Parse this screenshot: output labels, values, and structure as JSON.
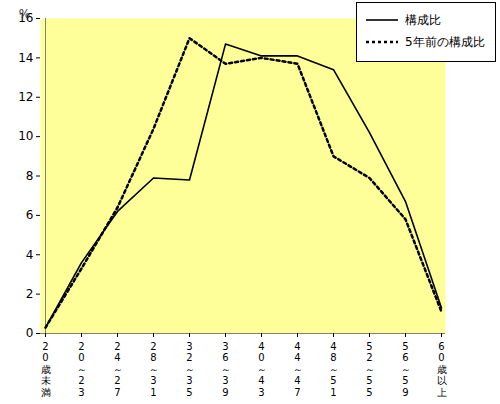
{
  "chart_data": {
    "type": "line",
    "y_label": "%",
    "categories": [
      "20歳未満",
      "20～23",
      "24～27",
      "28～31",
      "32～35",
      "36～39",
      "40～43",
      "44～47",
      "48～51",
      "52～55",
      "56～59",
      "60歳以上"
    ],
    "series": [
      {
        "name": "構成比",
        "color": "#000000",
        "line_style": "solid",
        "values": [
          0.3,
          3.6,
          6.2,
          7.9,
          7.8,
          14.7,
          14.1,
          14.1,
          13.4,
          10.2,
          6.7,
          1.3
        ]
      },
      {
        "name": "5年前の構成比",
        "color": "#000000",
        "line_style": "dotted",
        "values": [
          0.3,
          3.3,
          6.4,
          10.4,
          15.0,
          13.7,
          14.0,
          13.7,
          9.0,
          7.9,
          5.8,
          1.1
        ]
      }
    ],
    "ylim": [
      0,
      16
    ],
    "yticks": [
      0,
      2,
      4,
      6,
      8,
      10,
      12,
      14,
      16
    ],
    "grid": false,
    "legend": "upper right"
  }
}
